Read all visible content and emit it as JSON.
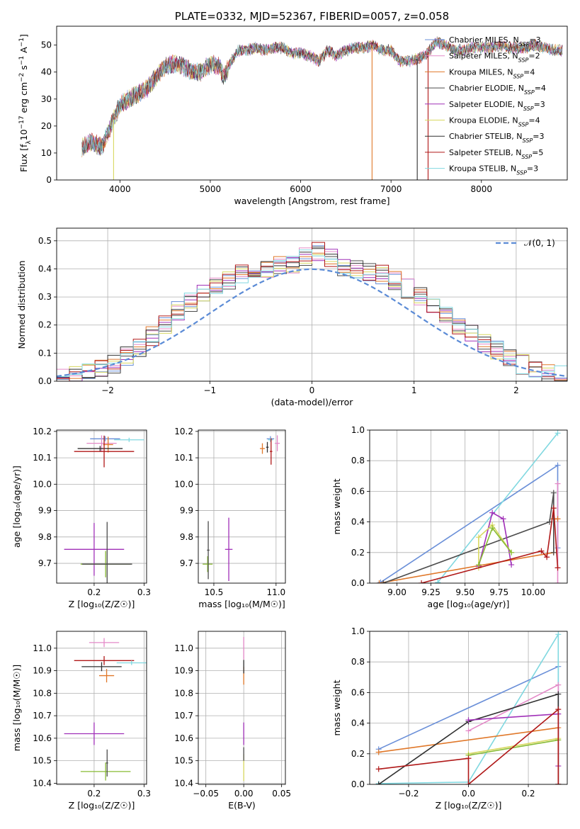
{
  "colors": {
    "Chabrier MILES": "#6a8fd8",
    "Salpeter MILES": "#e48ac8",
    "Kroupa MILES": "#e0782a",
    "Chabrier ELODIE": "#4c4c4c",
    "Salpeter ELODIE": "#a030b8",
    "Kroupa ELODIE": "#d8d860",
    "Chabrier STELIB": "#303030",
    "Salpeter STELIB": "#b01818",
    "Kroupa STELIB": "#80d8e0",
    "elodie_green": "#88bb33",
    "normal_curve": "#5b8bd6"
  },
  "chart_data": [
    {
      "id": "spectrum",
      "type": "line",
      "title": "PLATE=0332, MJD=52367, FIBERID=0057, z=0.058",
      "xlabel": "wavelength [Angstrom, rest frame]",
      "ylabel": "Flux [f_λ 10^-17 erg cm^-2 s^-1 A^-1]",
      "xlim": [
        3300,
        8950
      ],
      "ylim": [
        0,
        57
      ],
      "xticks": [
        "4000",
        "5000",
        "6000",
        "7000",
        "8000"
      ],
      "yticks": [
        "0",
        "10",
        "20",
        "30",
        "40",
        "50"
      ],
      "legend_position": "right",
      "legend": [
        {
          "base": "Chabrier MILES, N",
          "sub": "SSP",
          "tail": "=3"
        },
        {
          "base": "Salpeter MILES, N",
          "sub": "SSP",
          "tail": "=2"
        },
        {
          "base": "Kroupa MILES, N",
          "sub": "SSP",
          "tail": "=4"
        },
        {
          "base": "Chabrier ELODIE, N",
          "sub": "SSP",
          "tail": "=4"
        },
        {
          "base": "Salpeter ELODIE, N",
          "sub": "SSP",
          "tail": "=3"
        },
        {
          "base": "Kroupa ELODIE, N",
          "sub": "SSP",
          "tail": "=4"
        },
        {
          "base": "Chabrier STELIB, N",
          "sub": "SSP",
          "tail": "=3"
        },
        {
          "base": "Salpeter STELIB, N",
          "sub": "SSP",
          "tail": "=5"
        },
        {
          "base": "Kroupa STELIB, N",
          "sub": "SSP",
          "tail": "=3"
        }
      ],
      "continuum": [
        [
          3580,
          12
        ],
        [
          3700,
          14
        ],
        [
          3800,
          12
        ],
        [
          3900,
          20
        ],
        [
          4000,
          28
        ],
        [
          4100,
          30
        ],
        [
          4200,
          32
        ],
        [
          4300,
          34
        ],
        [
          4400,
          38
        ],
        [
          4500,
          42
        ],
        [
          4600,
          43
        ],
        [
          4700,
          42
        ],
        [
          4800,
          40
        ],
        [
          4900,
          40
        ],
        [
          5000,
          43
        ],
        [
          5100,
          42
        ],
        [
          5150,
          38
        ],
        [
          5200,
          42
        ],
        [
          5300,
          48
        ],
        [
          5400,
          48
        ],
        [
          5500,
          49
        ],
        [
          5600,
          48
        ],
        [
          5700,
          49
        ],
        [
          5800,
          49
        ],
        [
          5900,
          47
        ],
        [
          6000,
          47
        ],
        [
          6100,
          46
        ],
        [
          6200,
          44
        ],
        [
          6300,
          48
        ],
        [
          6400,
          46
        ],
        [
          6500,
          48
        ],
        [
          6600,
          49
        ],
        [
          6700,
          49
        ],
        [
          6800,
          50
        ],
        [
          6900,
          48
        ],
        [
          7000,
          48
        ],
        [
          7100,
          44
        ],
        [
          7200,
          44
        ],
        [
          7300,
          45
        ],
        [
          7400,
          47
        ],
        [
          7500,
          51
        ],
        [
          7600,
          50
        ],
        [
          7700,
          48
        ],
        [
          7800,
          48
        ],
        [
          7900,
          49
        ],
        [
          8000,
          49
        ],
        [
          8100,
          49
        ],
        [
          8200,
          50
        ],
        [
          8300,
          49
        ],
        [
          8400,
          49
        ],
        [
          8500,
          49
        ],
        [
          8600,
          50
        ],
        [
          8700,
          49
        ],
        [
          8800,
          48
        ],
        [
          8900,
          48
        ]
      ],
      "spikes": [
        {
          "x": 3930,
          "y_min": 0
        },
        {
          "x": 6790,
          "y_min": 0
        },
        {
          "x": 7290,
          "y_min": 0
        },
        {
          "x": 7410,
          "y_min": 0
        }
      ]
    },
    {
      "id": "residuals",
      "type": "histogram",
      "xlabel": "(data-model)/error",
      "ylabel": "Normed distribution",
      "xlim": [
        -2.5,
        2.5
      ],
      "ylim": [
        0,
        0.545
      ],
      "xticks": [
        "−2",
        "−1",
        "0",
        "1",
        "2"
      ],
      "yticks": [
        "0.0",
        "0.1",
        "0.2",
        "0.3",
        "0.4",
        "0.5"
      ],
      "legend_label": "𝒩(0, 1)",
      "legend_position": "top-right",
      "bin_width": 0.1,
      "profile": [
        0.01,
        0.02,
        0.03,
        0.04,
        0.06,
        0.09,
        0.12,
        0.16,
        0.2,
        0.25,
        0.28,
        0.31,
        0.34,
        0.36,
        0.38,
        0.39,
        0.4,
        0.41,
        0.42,
        0.44,
        0.46,
        0.44,
        0.41,
        0.4,
        0.39,
        0.38,
        0.36,
        0.33,
        0.3,
        0.27,
        0.23,
        0.2,
        0.17,
        0.14,
        0.11,
        0.08,
        0.06,
        0.04,
        0.03,
        0.02
      ],
      "profile_start": -2.5
    },
    {
      "id": "age_vs_Z",
      "type": "errorbar",
      "xlabel": "Z [log₁₀(Z/Z☉)]",
      "ylabel": "age  [log₁₀(age/yr)]",
      "xlim": [
        0.125,
        0.305
      ],
      "ylim": [
        9.625,
        10.205
      ],
      "xticks": [
        "0.2",
        "0.3"
      ],
      "yticks": [
        "9.7",
        "9.8",
        "9.9",
        "10.0",
        "10.1",
        "10.2"
      ],
      "points": [
        {
          "model": "Chabrier MILES",
          "x": 0.222,
          "y": 10.172,
          "xerr": 0.03,
          "yerr": 0.01
        },
        {
          "model": "Kroupa STELIB",
          "x": 0.27,
          "y": 10.168,
          "xerr": 0.03,
          "yerr": 0.008
        },
        {
          "model": "Salpeter MILES",
          "x": 0.215,
          "y": 10.155,
          "xerr": 0.03,
          "yerr": 0.03
        },
        {
          "model": "Kroupa MILES",
          "x": 0.228,
          "y": 10.15,
          "xerr": 0.01,
          "yerr": 0.03
        },
        {
          "model": "Chabrier STELIB",
          "x": 0.212,
          "y": 10.135,
          "xerr": 0.045,
          "yerr": 0.01
        },
        {
          "model": "Salpeter STELIB",
          "x": 0.22,
          "y": 10.124,
          "xerr": 0.06,
          "yerr": 0.06
        },
        {
          "model": "Salpeter ELODIE",
          "x": 0.2,
          "y": 9.753,
          "xerr": 0.06,
          "yerr": 0.1
        },
        {
          "model": "elodie_green",
          "x": 0.223,
          "y": 9.697,
          "xerr": 0.05,
          "yerr": 0.05
        },
        {
          "model": "Chabrier ELODIE",
          "x": 0.226,
          "y": 9.697,
          "xerr": 0.05,
          "yerr": 0.16
        }
      ]
    },
    {
      "id": "age_vs_mass",
      "type": "errorbar",
      "xlabel": "mass [log₁₀(M/M☉)]",
      "ylabel": "",
      "xlim": [
        10.375,
        11.075
      ],
      "ylim": [
        9.625,
        10.205
      ],
      "xticks": [
        "10.5",
        "11.0"
      ],
      "yticks": [
        "9.7",
        "9.8",
        "9.9",
        "10.0",
        "10.1",
        "10.2"
      ],
      "points": [
        {
          "model": "Chabrier MILES",
          "x": 10.955,
          "y": 10.172,
          "xerr": 0.03,
          "yerr": 0.01
        },
        {
          "model": "Kroupa STELIB",
          "x": 10.955,
          "y": 10.168,
          "xerr": 0.02,
          "yerr": 0.008
        },
        {
          "model": "Salpeter MILES",
          "x": 11.01,
          "y": 10.155,
          "xerr": 0.02,
          "yerr": 0.03
        },
        {
          "model": "Kroupa MILES",
          "x": 10.89,
          "y": 10.135,
          "xerr": 0.02,
          "yerr": 0.02
        },
        {
          "model": "Chabrier STELIB",
          "x": 10.93,
          "y": 10.14,
          "xerr": 0.01,
          "yerr": 0.02
        },
        {
          "model": "Salpeter STELIB",
          "x": 10.96,
          "y": 10.124,
          "xerr": 0.01,
          "yerr": 0.05
        },
        {
          "model": "Salpeter ELODIE",
          "x": 10.62,
          "y": 9.753,
          "xerr": 0.03,
          "yerr": 0.12
        },
        {
          "model": "elodie_green",
          "x": 10.45,
          "y": 9.697,
          "xerr": 0.04,
          "yerr": 0.03
        },
        {
          "model": "Chabrier ELODIE",
          "x": 10.455,
          "y": 9.75,
          "xerr": 0.01,
          "yerr": 0.11
        }
      ]
    },
    {
      "id": "weight_vs_age",
      "type": "line",
      "xlabel": "age  [log₁₀(age/yr)]",
      "ylabel": "mass weight",
      "xlim": [
        8.8,
        10.25
      ],
      "ylim": [
        0,
        1.0
      ],
      "xticks": [
        "9.00",
        "9.25",
        "9.50",
        "9.75",
        "10.00"
      ],
      "yticks": [
        "0.0",
        "0.2",
        "0.4",
        "0.6",
        "0.8",
        "1.0"
      ],
      "series": [
        {
          "model": "Chabrier MILES",
          "x": [
            8.88,
            10.18,
            10.18
          ],
          "y": [
            0.005,
            0.77,
            0.23
          ]
        },
        {
          "model": "Kroupa STELIB",
          "x": [
            9.3,
            9.3,
            10.18
          ],
          "y": [
            0.0,
            0.005,
            0.98
          ]
        },
        {
          "model": "Salpeter MILES",
          "x": [
            10.18,
            10.18
          ],
          "y": [
            0.0,
            0.65
          ]
        },
        {
          "model": "Kroupa MILES",
          "x": [
            8.87,
            10.15,
            10.15,
            10.18
          ],
          "y": [
            0.0,
            0.2,
            0.42,
            0.42
          ]
        },
        {
          "model": "Chabrier ELODIE",
          "x": [
            8.9,
            10.12,
            10.15,
            10.15
          ],
          "y": [
            0.0,
            0.4,
            0.59,
            0.2
          ]
        },
        {
          "model": "Salpeter ELODIE",
          "x": [
            9.6,
            9.7,
            9.78,
            9.84
          ],
          "y": [
            0.11,
            0.46,
            0.42,
            0.12
          ]
        },
        {
          "model": "Kroupa ELODIE",
          "x": [
            9.6,
            9.6,
            9.7,
            9.84
          ],
          "y": [
            0.1,
            0.3,
            0.38,
            0.2
          ]
        },
        {
          "model": "elodie_green",
          "x": [
            9.6,
            9.7,
            9.84
          ],
          "y": [
            0.12,
            0.36,
            0.2
          ]
        },
        {
          "model": "Salpeter STELIB",
          "x": [
            9.18,
            10.06,
            10.1,
            10.15,
            10.18
          ],
          "y": [
            0.0,
            0.21,
            0.17,
            0.49,
            0.1
          ]
        }
      ]
    },
    {
      "id": "mass_vs_Z",
      "type": "errorbar",
      "xlabel": "Z [log₁₀(Z/Z☉)]",
      "ylabel": "mass [log₁₀(M/M☉)]",
      "xlim": [
        0.125,
        0.305
      ],
      "ylim": [
        10.395,
        11.075
      ],
      "xticks": [
        "0.2",
        "0.3"
      ],
      "yticks": [
        "10.4",
        "10.5",
        "10.6",
        "10.7",
        "10.8",
        "10.9",
        "11.0"
      ],
      "points": [
        {
          "model": "Salpeter MILES",
          "x": 0.22,
          "y": 11.025,
          "xerr": 0.03,
          "yerr": 0.02
        },
        {
          "model": "Salpeter STELIB",
          "x": 0.22,
          "y": 10.945,
          "xerr": 0.06,
          "yerr": 0.02
        },
        {
          "model": "Kroupa STELIB",
          "x": 0.275,
          "y": 10.935,
          "xerr": 0.03,
          "yerr": 0.01
        },
        {
          "model": "Chabrier STELIB",
          "x": 0.215,
          "y": 10.918,
          "xerr": 0.04,
          "yerr": 0.02
        },
        {
          "model": "Kroupa MILES",
          "x": 0.225,
          "y": 10.878,
          "xerr": 0.015,
          "yerr": 0.03
        },
        {
          "model": "Salpeter ELODIE",
          "x": 0.2,
          "y": 10.62,
          "xerr": 0.06,
          "yerr": 0.05
        },
        {
          "model": "elodie_green",
          "x": 0.223,
          "y": 10.452,
          "xerr": 0.05,
          "yerr": 0.04
        },
        {
          "model": "Chabrier ELODIE",
          "x": 0.226,
          "y": 10.49,
          "xerr": 0.002,
          "yerr": 0.06
        }
      ]
    },
    {
      "id": "mass_vs_EBV",
      "type": "errorbar",
      "xlabel": "E(B-V)",
      "ylabel": "",
      "xlim": [
        -0.06,
        0.055
      ],
      "ylim": [
        10.395,
        11.075
      ],
      "xticks": [
        "−0.05",
        "0.00",
        "0.05"
      ],
      "yticks": [
        "10.4",
        "10.5",
        "10.6",
        "10.7",
        "10.8",
        "10.9",
        "11.0"
      ],
      "points": [
        {
          "model": "Salpeter MILES",
          "x": 0.0,
          "y": 11.0,
          "xerr": 0.0,
          "yerr": 0.05
        },
        {
          "model": "Kroupa MILES",
          "x": 0.0,
          "y": 10.878,
          "xerr": 0.0,
          "yerr": 0.04
        },
        {
          "model": "Chabrier STELIB",
          "x": 0.0,
          "y": 10.918,
          "xerr": 0.0,
          "yerr": 0.03
        },
        {
          "model": "Salpeter ELODIE",
          "x": 0.0,
          "y": 10.62,
          "xerr": 0.0,
          "yerr": 0.05
        },
        {
          "model": "Kroupa ELODIE",
          "x": 0.0,
          "y": 10.47,
          "xerr": 0.0,
          "yerr": 0.06
        },
        {
          "model": "Chabrier ELODIE",
          "x": 0.0,
          "y": 10.53,
          "xerr": 0.0,
          "yerr": 0.03
        }
      ]
    },
    {
      "id": "weight_vs_Z",
      "type": "line",
      "xlabel": "Z [log₁₀(Z/Z☉)]",
      "ylabel": "mass weight",
      "xlim": [
        -0.33,
        0.33
      ],
      "ylim": [
        0,
        1.0
      ],
      "xticks": [
        "−0.2",
        "0.0",
        "0.2"
      ],
      "yticks": [
        "0.0",
        "0.2",
        "0.4",
        "0.6",
        "0.8",
        "1.0"
      ],
      "series": [
        {
          "model": "Chabrier MILES",
          "x": [
            -0.3,
            0.3,
            0.3
          ],
          "y": [
            0.23,
            0.77,
            0.0
          ]
        },
        {
          "model": "Kroupa STELIB",
          "x": [
            -0.3,
            0.0,
            0.3,
            0.3
          ],
          "y": [
            0.005,
            0.015,
            0.98,
            0.0
          ]
        },
        {
          "model": "Salpeter MILES",
          "x": [
            0.0,
            0.3,
            0.3
          ],
          "y": [
            0.35,
            0.65,
            0.0
          ]
        },
        {
          "model": "Kroupa MILES",
          "x": [
            -0.3,
            0.3,
            0.3
          ],
          "y": [
            0.21,
            0.37,
            0.0
          ]
        },
        {
          "model": "Chabrier STELIB",
          "x": [
            -0.3,
            0.0,
            0.3,
            0.3
          ],
          "y": [
            0.0,
            0.41,
            0.59,
            0.0
          ]
        },
        {
          "model": "Salpeter ELODIE",
          "x": [
            0.0,
            0.3,
            0.3
          ],
          "y": [
            0.42,
            0.46,
            0.12
          ]
        },
        {
          "model": "Kroupa ELODIE",
          "x": [
            0.0,
            0.3
          ],
          "y": [
            0.2,
            0.3
          ]
        },
        {
          "model": "elodie_green",
          "x": [
            0.0,
            0.3
          ],
          "y": [
            0.19,
            0.29
          ]
        },
        {
          "model": "Salpeter STELIB",
          "x": [
            -0.3,
            0.0,
            0.0,
            0.3,
            0.3
          ],
          "y": [
            0.1,
            0.17,
            0.0,
            0.49,
            0.0
          ]
        }
      ]
    }
  ]
}
